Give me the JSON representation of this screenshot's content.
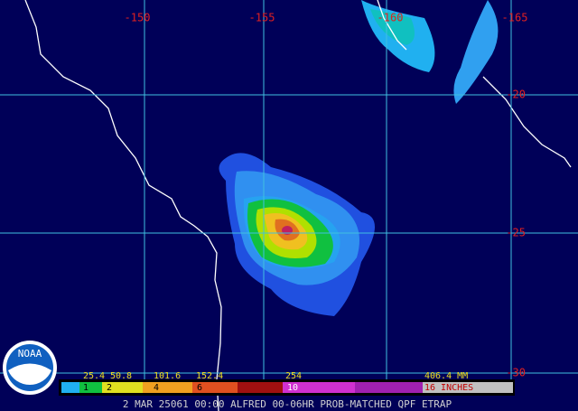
{
  "map": {
    "longitude_labels": [
      "-150",
      "-155",
      "-160",
      "-165"
    ],
    "latitude_labels": [
      "-20",
      "-25",
      "-30"
    ],
    "logo": "NOAA",
    "legend": {
      "mm_labels": [
        "25.4",
        "50.8",
        "101.6",
        "152.4",
        "254",
        "406.4 MM"
      ],
      "inch_labels": [
        "1",
        "2",
        "4",
        "6",
        "10",
        "16 INCHES"
      ]
    },
    "footer": "2 MAR 25061 00:00 ALFRED 00-06HR PROB-MATCHED QPF ETRAP"
  }
}
